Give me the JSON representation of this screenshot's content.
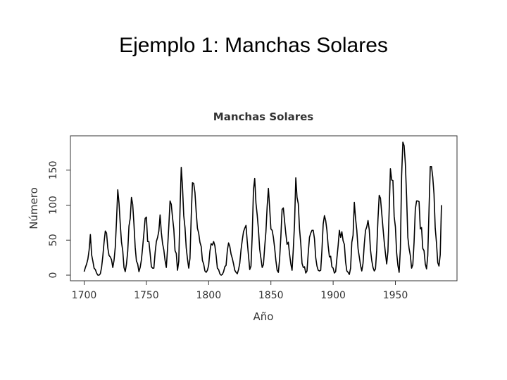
{
  "slide": {
    "title": "Ejemplo 1: Manchas Solares"
  },
  "chart_data": {
    "type": "line",
    "title": "Manchas Solares",
    "xlabel": "Año",
    "ylabel": "Número",
    "xlim": [
      1700,
      1988
    ],
    "ylim": [
      0,
      190
    ],
    "x_ticks": [
      1700,
      1750,
      1800,
      1850,
      1900,
      1950
    ],
    "y_ticks": [
      0,
      50,
      100,
      150
    ],
    "grid": false,
    "legend": "none",
    "line_color": "#000000",
    "x_start": 1700,
    "values": [
      5,
      11,
      16,
      23,
      36,
      58,
      29,
      20,
      10,
      8,
      3,
      0,
      0,
      2,
      11,
      27,
      47,
      63,
      60,
      39,
      28,
      26,
      22,
      11,
      21,
      40,
      78,
      122,
      103,
      73,
      47,
      35,
      11,
      5,
      16,
      34,
      70,
      81,
      111,
      101,
      73,
      40,
      20,
      16,
      5,
      11,
      22,
      40,
      60,
      81,
      83,
      48,
      48,
      31,
      12,
      10,
      10,
      32,
      48,
      54,
      63,
      86,
      61,
      45,
      36,
      21,
      11,
      38,
      70,
      106,
      101,
      82,
      66,
      35,
      31,
      7,
      20,
      93,
      154,
      126,
      85,
      68,
      39,
      23,
      10,
      24,
      83,
      132,
      131,
      118,
      90,
      67,
      60,
      47,
      41,
      21,
      16,
      6,
      4,
      7,
      14,
      34,
      45,
      43,
      48,
      42,
      28,
      10,
      8,
      2,
      0,
      1,
      5,
      12,
      14,
      35,
      46,
      41,
      30,
      24,
      16,
      7,
      4,
      2,
      8,
      17,
      36,
      50,
      62,
      67,
      71,
      48,
      28,
      8,
      13,
      57,
      122,
      138,
      103,
      86,
      65,
      37,
      24,
      11,
      15,
      40,
      62,
      98,
      124,
      96,
      66,
      64,
      54,
      39,
      21,
      7,
      4,
      23,
      55,
      94,
      96,
      77,
      59,
      44,
      47,
      30,
      16,
      7,
      37,
      74,
      139,
      111,
      102,
      66,
      45,
      17,
      11,
      12,
      3,
      6,
      32,
      54,
      60,
      64,
      64,
      52,
      25,
      13,
      7,
      6,
      7,
      36,
      73,
      85,
      78,
      64,
      42,
      26,
      27,
      12,
      10,
      3,
      5,
      24,
      42,
      64,
      54,
      62,
      49,
      44,
      19,
      6,
      4,
      1,
      10,
      47,
      57,
      104,
      81,
      64,
      38,
      26,
      14,
      6,
      17,
      44,
      64,
      69,
      78,
      65,
      36,
      21,
      11,
      6,
      9,
      36,
      80,
      114,
      110,
      89,
      68,
      48,
      31,
      16,
      34,
      93,
      152,
      136,
      135,
      84,
      69,
      32,
      14,
      4,
      38,
      142,
      190,
      185,
      159,
      112,
      54,
      38,
      28,
      10,
      15,
      47,
      94,
      106,
      106,
      105,
      66,
      68,
      38,
      35,
      16,
      9,
      28,
      93,
      155,
      155,
      140,
      116,
      67,
      46,
      18,
      13,
      29,
      100
    ]
  }
}
